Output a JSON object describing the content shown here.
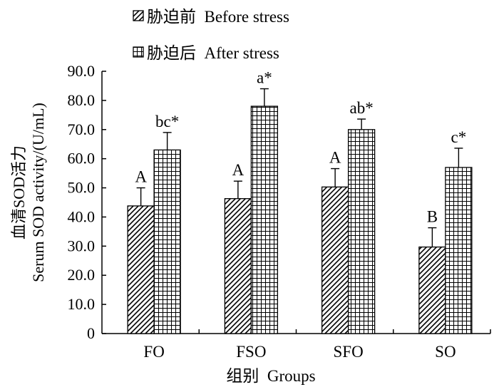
{
  "chart_data": {
    "type": "bar",
    "categories": [
      "FO",
      "FSO",
      "SFO",
      "SO"
    ],
    "series": [
      {
        "name": "胁迫前  Before stress",
        "pattern": "diagonal-hatch",
        "values": [
          43.8,
          46.3,
          50.3,
          29.7
        ],
        "errors": [
          6.2,
          6.0,
          6.3,
          6.6
        ],
        "labels": [
          "A",
          "A",
          "A",
          "B"
        ]
      },
      {
        "name": "胁迫后  After stress",
        "pattern": "grid",
        "values": [
          63.0,
          78.0,
          70.0,
          57.0
        ],
        "errors": [
          6.0,
          6.0,
          3.6,
          6.6
        ],
        "labels": [
          "bc*",
          "a*",
          "ab*",
          "c*"
        ]
      }
    ],
    "ylabel_cn": "血清SOD活力",
    "ylabel_en": "Serum SOD activity/(U/mL)",
    "xlabel": "组别  Groups",
    "ylim": [
      0,
      90
    ],
    "yticks": [
      "0",
      "10.0",
      "20.0",
      "30.0",
      "40.0",
      "50.0",
      "60.0",
      "70.0",
      "80.0",
      "90.0"
    ],
    "legend_position": "top",
    "grid": false
  }
}
